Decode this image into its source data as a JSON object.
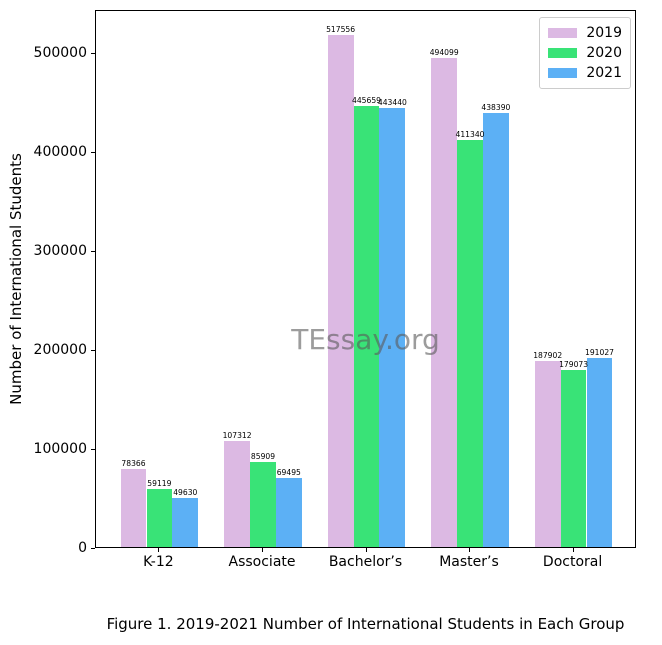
{
  "figure": {
    "caption": "Figure 1. 2019-2021 Number of International Students in Each Group",
    "watermark": "TEssay.org"
  },
  "colors": {
    "series_2019": "#dcb9e3",
    "series_2020": "#39e377",
    "series_2021": "#5cb0f5",
    "axis": "#000000",
    "legend_border": "#cccccc",
    "watermark_gray": "rgba(90,90,90,0.6)"
  },
  "chart_data": {
    "type": "bar",
    "title": "",
    "xlabel": "",
    "ylabel": "Number of International Students",
    "categories": [
      "K-12",
      "Associate",
      "Bachelor’s",
      "Master’s",
      "Doctoral"
    ],
    "series": [
      {
        "name": "2019",
        "color": "#dcb9e3",
        "values": [
          78366,
          107312,
          517556,
          494099,
          187902
        ]
      },
      {
        "name": "2020",
        "color": "#39e377",
        "values": [
          59119,
          85909,
          445659,
          411340,
          179073
        ]
      },
      {
        "name": "2021",
        "color": "#5cb0f5",
        "values": [
          49630,
          69495,
          443440,
          438390,
          191027
        ]
      }
    ],
    "ylim": [
      0,
      543434
    ],
    "yticks": [
      0,
      100000,
      200000,
      300000,
      400000,
      500000
    ],
    "bar_value_labels": true,
    "grid": false,
    "legend_position": "upper right"
  }
}
